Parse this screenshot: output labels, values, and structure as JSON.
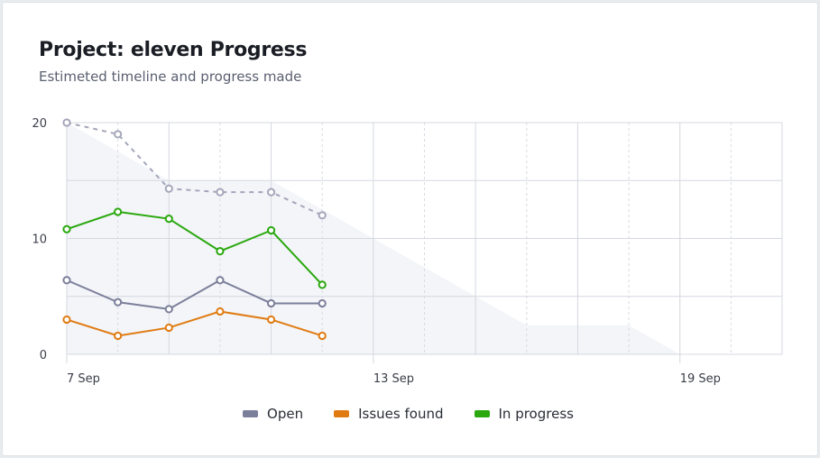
{
  "header": {
    "title": "Project: eleven Progress",
    "subtitle": "Estimeted timeline and progress made"
  },
  "chart_data": {
    "type": "line",
    "x_range": [
      "2024-09-07",
      "2024-09-21"
    ],
    "x_ticks": [
      {
        "date": "2024-09-07",
        "label": "7 Sep"
      },
      {
        "date": "2024-09-13",
        "label": "13 Sep"
      },
      {
        "date": "2024-09-19",
        "label": "19 Sep"
      }
    ],
    "ylim": [
      0,
      20
    ],
    "y_ticks": [
      0,
      10,
      20
    ],
    "grid": true,
    "legend_position": "bottom",
    "x": [
      "2024-09-07",
      "2024-09-08",
      "2024-09-09",
      "2024-09-10",
      "2024-09-11",
      "2024-09-12"
    ],
    "series": [
      {
        "name": "Open",
        "color": "#7b7f99",
        "values": [
          6.4,
          4.5,
          3.9,
          6.4,
          4.4,
          4.4
        ]
      },
      {
        "name": "Issues found",
        "color": "#e07b12",
        "values": [
          3.0,
          1.6,
          2.3,
          3.7,
          3.0,
          1.6
        ]
      },
      {
        "name": "In progress",
        "color": "#2aa80e",
        "values": [
          10.8,
          12.3,
          11.7,
          8.9,
          10.7,
          6.0
        ]
      }
    ],
    "total_dashed": {
      "color": "#a4a7ba",
      "values": [
        20,
        19,
        14.3,
        14,
        14,
        12
      ]
    },
    "ideal_area": {
      "color": "#f3f5f9",
      "x": [
        "2024-09-07",
        "2024-09-09",
        "2024-09-11",
        "2024-09-13",
        "2024-09-15",
        "2024-09-16",
        "2024-09-18",
        "2024-09-19"
      ],
      "values": [
        20,
        15,
        15,
        10,
        5,
        2.5,
        2.5,
        0
      ]
    }
  }
}
